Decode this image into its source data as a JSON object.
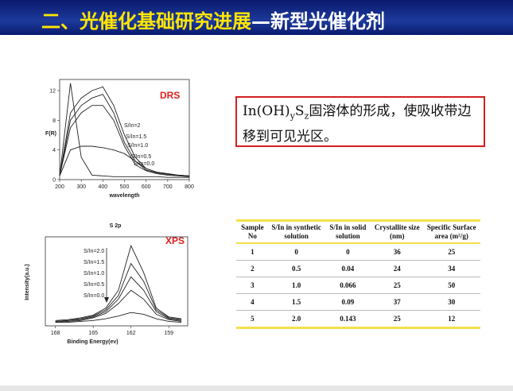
{
  "header": {
    "title_main": "二、光催化基础研究进展",
    "title_sub": "—新型光催化剂"
  },
  "drs": {
    "label": "DRS",
    "chart_data": {
      "type": "line",
      "y_label": "F(R)",
      "x_label": "wavelength",
      "x": [
        200,
        250,
        300,
        350,
        400,
        450,
        500,
        550,
        600,
        650,
        700,
        750,
        800
      ],
      "xlim": [
        200,
        800
      ],
      "xticks": [
        200,
        300,
        400,
        500,
        600,
        700,
        800
      ],
      "ylim": [
        0,
        13.5
      ],
      "yticks": [
        0,
        4,
        8,
        12
      ],
      "series": [
        {
          "name": "S/In=2",
          "color": "#222222",
          "values": [
            0.5,
            9,
            11,
            12,
            12.5,
            10,
            6,
            3,
            1.5,
            1,
            0.8,
            0.6,
            0.5
          ]
        },
        {
          "name": "S/In=1.5",
          "color": "#222222",
          "values": [
            0.5,
            8,
            10,
            11,
            11.5,
            9,
            5,
            2.5,
            1.3,
            0.9,
            0.7,
            0.6,
            0.5
          ]
        },
        {
          "name": "S/In=1.0",
          "color": "#222222",
          "values": [
            0.5,
            7,
            9,
            10,
            10,
            8,
            4.5,
            2,
            1.2,
            0.8,
            0.6,
            0.5,
            0.4
          ]
        },
        {
          "name": "S/In=0.5",
          "color": "#222222",
          "values": [
            0.5,
            4,
            4.5,
            4.5,
            4.3,
            4,
            3.5,
            2.5,
            1.5,
            1,
            0.8,
            0.6,
            0.5
          ]
        },
        {
          "name": "S/In=0.0",
          "color": "#222222",
          "values": [
            0.5,
            13,
            3,
            0.6,
            0.5,
            0.4,
            0.4,
            0.4,
            0.4,
            0.4,
            0.3,
            0.3,
            0.3
          ]
        }
      ]
    }
  },
  "text_box": {
    "parts": [
      "In(OH)",
      "y",
      "S",
      "z",
      "固溶体的形成，使吸收带边移到可见光区。"
    ]
  },
  "xps": {
    "label": "XPS",
    "chart_data": {
      "type": "line",
      "title": "S 2p",
      "y_label": "Intensity(a.u.)",
      "x_label": "Binding Energy(ev)",
      "x": [
        168,
        167,
        166,
        165,
        164,
        163,
        162,
        161,
        160,
        159,
        158
      ],
      "xlim": [
        168.8,
        157.5
      ],
      "xticks": [
        168,
        165,
        162,
        159
      ],
      "ylim": [
        0,
        10
      ],
      "series": [
        {
          "name": "S/In=2.0",
          "color": "#222222",
          "values": [
            0.6,
            0.7,
            0.9,
            1.2,
            2,
            4,
            9,
            6,
            2,
            1,
            0.8
          ]
        },
        {
          "name": "S/In=1.5",
          "color": "#222222",
          "values": [
            0.5,
            0.6,
            0.8,
            1.1,
            1.8,
            3.4,
            7,
            5,
            1.8,
            0.9,
            0.7
          ]
        },
        {
          "name": "S/In=1.0",
          "color": "#222222",
          "values": [
            0.5,
            0.6,
            0.7,
            1,
            1.6,
            3,
            5.5,
            4,
            1.6,
            0.8,
            0.6
          ]
        },
        {
          "name": "S/In=0.5",
          "color": "#222222",
          "values": [
            0.4,
            0.5,
            0.6,
            0.9,
            1.4,
            2.5,
            4,
            3,
            1.3,
            0.7,
            0.5
          ]
        },
        {
          "name": "S/In=0.0",
          "color": "#222222",
          "values": [
            0.4,
            0.4,
            0.5,
            0.6,
            0.8,
            1.1,
            1.5,
            1.3,
            0.8,
            0.5,
            0.4
          ]
        }
      ]
    }
  },
  "table": {
    "header": [
      "Sample No",
      "S/In in synthetic solution",
      "S/In in solid solution",
      "Crystallite size (nm)",
      "Specific Surface area (m²/g)"
    ],
    "rows": [
      [
        "1",
        "0",
        "0",
        "36",
        "25"
      ],
      [
        "2",
        "0.5",
        "0.04",
        "24",
        "34"
      ],
      [
        "3",
        "1.0",
        "0.066",
        "25",
        "50"
      ],
      [
        "4",
        "1.5",
        "0.09",
        "37",
        "30"
      ],
      [
        "5",
        "2.0",
        "0.143",
        "25",
        "12"
      ]
    ]
  }
}
